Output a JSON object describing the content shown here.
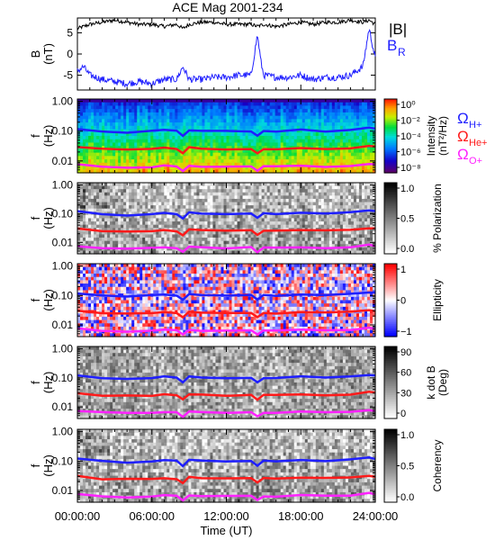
{
  "title": "ACE Mag 2001-234",
  "colors": {
    "total": "#000000",
    "radial": "#1f1fff",
    "h_plus": "#1f1fff",
    "he_plus": "#ff1a1a",
    "o_plus": "#ff22ff"
  },
  "chart_data": [
    {
      "type": "line",
      "panel": "magnetic-field",
      "ylabel": "B\n(nT)",
      "ylim": [
        -8.5,
        8.5
      ],
      "yticks": [
        "5",
        "0",
        "-5"
      ],
      "xlim": [
        "00:00:00",
        "24:00:00"
      ],
      "series": [
        {
          "name": "|B|",
          "color": "#000000",
          "x": [
            0,
            1,
            2,
            3,
            4,
            5,
            6,
            7,
            8,
            8.5,
            9,
            10,
            11,
            12,
            13,
            14,
            14.5,
            15,
            16,
            17,
            18,
            19,
            20,
            21,
            22,
            23,
            23.5,
            24
          ],
          "y": [
            6,
            7,
            7.5,
            8,
            7.5,
            7,
            7,
            6.5,
            7,
            6,
            7,
            7.5,
            7.5,
            7,
            7,
            7,
            6.5,
            7,
            6.5,
            7,
            7.5,
            7,
            7.5,
            7.5,
            8,
            7.5,
            8,
            7
          ]
        },
        {
          "name": "B_R",
          "color": "#1f1fff",
          "x": [
            0,
            0.5,
            1,
            2,
            3,
            4,
            5,
            6,
            7,
            8,
            8.5,
            9,
            10,
            11,
            12,
            13,
            14,
            14.5,
            14.8,
            15,
            16,
            17,
            18,
            19,
            20,
            21,
            22,
            23,
            23.5,
            24
          ],
          "y": [
            -4,
            -3,
            -5,
            -6,
            -6.5,
            -7,
            -6.5,
            -7,
            -6,
            -6,
            -3,
            -6,
            -6,
            -5.5,
            -5.5,
            -5,
            -5,
            4.5,
            -2,
            -5,
            -5.5,
            -5.5,
            -5,
            -6,
            -5.5,
            -5.5,
            -5,
            -3,
            6,
            -1
          ]
        }
      ],
      "legend": {
        "total": "|B|",
        "radial_main": "B",
        "radial_sub": "R"
      }
    },
    {
      "type": "heatmap",
      "panel": "intensity",
      "ylabel": "f\n(Hz)",
      "yscale": "log",
      "ylim": [
        0.004,
        1.2
      ],
      "yticks": [
        "1.00",
        "0.10",
        "0.01"
      ],
      "colorbar": {
        "label": "Intensity\n(nT²/Hz)",
        "ticks": [
          "10⁰",
          "10⁻²",
          "10⁻⁴",
          "10⁻⁶",
          "10⁻⁸"
        ],
        "colormap": "rainbow"
      },
      "legend": [
        "ΩH+",
        "ΩHe+",
        "ΩO+"
      ]
    },
    {
      "type": "heatmap",
      "panel": "polarization",
      "ylabel": "f\n(Hz)",
      "yscale": "log",
      "colorbar": {
        "label": "% Polarization",
        "ticks": [
          "1.0",
          "0.5",
          "0.0"
        ],
        "colormap": "gray"
      }
    },
    {
      "type": "heatmap",
      "panel": "ellipticity",
      "ylabel": "f\n(Hz)",
      "yscale": "log",
      "colorbar": {
        "label": "Ellipticity",
        "ticks": [
          "1",
          "0",
          "−1"
        ],
        "colormap": "red-white-blue"
      }
    },
    {
      "type": "heatmap",
      "panel": "k-dot-b",
      "ylabel": "f\n(Hz)",
      "yscale": "log",
      "colorbar": {
        "label": "k dot B\n(Deg)",
        "ticks": [
          "90",
          "60",
          "30",
          "0"
        ],
        "colormap": "gray"
      }
    },
    {
      "type": "heatmap",
      "panel": "coherency",
      "ylabel": "f\n(Hz)",
      "yscale": "log",
      "colorbar": {
        "label": "Coherency",
        "ticks": [
          "1.0",
          "0.5",
          "0.0"
        ],
        "colormap": "gray"
      }
    }
  ],
  "gyro_lines": {
    "x": [
      0,
      2,
      4,
      6,
      7,
      8,
      8.5,
      9,
      10,
      12,
      14,
      14.5,
      15,
      16,
      18,
      20,
      22,
      23.5,
      24
    ],
    "h_plus": [
      0.12,
      0.1,
      0.09,
      0.1,
      0.11,
      0.1,
      0.07,
      0.11,
      0.1,
      0.1,
      0.1,
      0.07,
      0.1,
      0.1,
      0.11,
      0.1,
      0.11,
      0.13,
      0.12
    ],
    "he_plus": [
      0.03,
      0.025,
      0.024,
      0.025,
      0.027,
      0.025,
      0.018,
      0.028,
      0.026,
      0.025,
      0.026,
      0.018,
      0.026,
      0.025,
      0.027,
      0.026,
      0.027,
      0.032,
      0.03
    ],
    "o_plus": [
      0.0075,
      0.0065,
      0.006,
      0.0063,
      0.0068,
      0.0064,
      0.0046,
      0.007,
      0.0065,
      0.0064,
      0.0066,
      0.0047,
      0.0065,
      0.0064,
      0.0068,
      0.0065,
      0.0068,
      0.008,
      0.0075
    ]
  },
  "xaxis": {
    "ticks": [
      "00:00:00",
      "06:00:00",
      "12:00:00",
      "18:00:00",
      "24:00:00"
    ],
    "label": "Time (UT)"
  }
}
